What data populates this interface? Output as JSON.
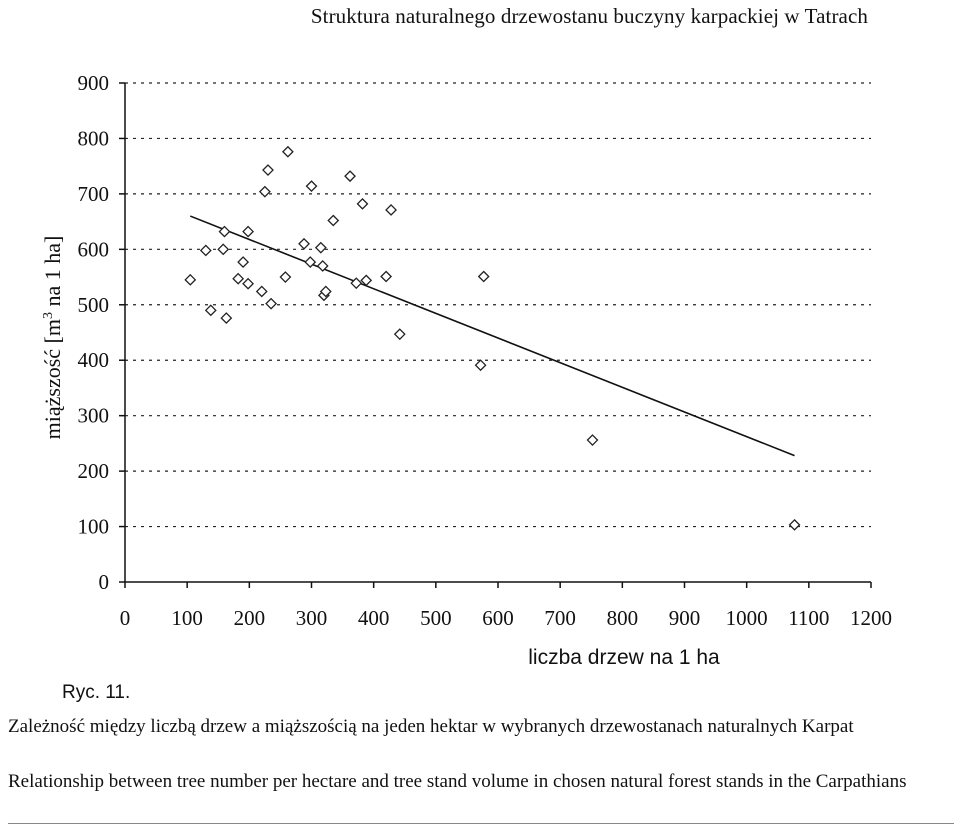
{
  "running_header": "Struktura naturalnego drzewostanu buczyny karpackiej w Tatrach",
  "figure": {
    "label": "Ryc. 11.",
    "caption_pl": "Zależność między liczbą drzew a miąższością na jeden hektar w wybranych drzewostanach naturalnych Karpat",
    "caption_en": "Relationship between tree number per hectare and tree stand volume in chosen natural forest stands in the Carpathians"
  },
  "chart_data": {
    "type": "scatter",
    "xlabel": "liczba drzew na 1 ha",
    "ylabel_prefix": "miąższość [m",
    "ylabel_sup": "3",
    "ylabel_suffix": " na 1 ha]",
    "xlim": [
      0,
      1200
    ],
    "ylim": [
      0,
      900
    ],
    "xticks": [
      0,
      100,
      200,
      300,
      400,
      500,
      600,
      700,
      800,
      900,
      1000,
      1100,
      1200
    ],
    "yticks": [
      0,
      100,
      200,
      300,
      400,
      500,
      600,
      700,
      800,
      900
    ],
    "grid": "horizontal dashed",
    "marker": "open diamond",
    "points": [
      {
        "x": 105,
        "y": 545
      },
      {
        "x": 130,
        "y": 598
      },
      {
        "x": 138,
        "y": 490
      },
      {
        "x": 158,
        "y": 600
      },
      {
        "x": 160,
        "y": 632
      },
      {
        "x": 163,
        "y": 476
      },
      {
        "x": 182,
        "y": 547
      },
      {
        "x": 190,
        "y": 577
      },
      {
        "x": 198,
        "y": 632
      },
      {
        "x": 198,
        "y": 538
      },
      {
        "x": 220,
        "y": 524
      },
      {
        "x": 225,
        "y": 704
      },
      {
        "x": 230,
        "y": 743
      },
      {
        "x": 235,
        "y": 502
      },
      {
        "x": 258,
        "y": 550
      },
      {
        "x": 262,
        "y": 776
      },
      {
        "x": 288,
        "y": 610
      },
      {
        "x": 298,
        "y": 577
      },
      {
        "x": 300,
        "y": 714
      },
      {
        "x": 315,
        "y": 603
      },
      {
        "x": 318,
        "y": 570
      },
      {
        "x": 320,
        "y": 517
      },
      {
        "x": 323,
        "y": 524
      },
      {
        "x": 335,
        "y": 652
      },
      {
        "x": 362,
        "y": 732
      },
      {
        "x": 372,
        "y": 539
      },
      {
        "x": 382,
        "y": 682
      },
      {
        "x": 388,
        "y": 544
      },
      {
        "x": 420,
        "y": 551
      },
      {
        "x": 428,
        "y": 671
      },
      {
        "x": 442,
        "y": 447
      },
      {
        "x": 572,
        "y": 391
      },
      {
        "x": 577,
        "y": 551
      },
      {
        "x": 752,
        "y": 256
      },
      {
        "x": 1077,
        "y": 103
      }
    ],
    "trendline": {
      "x": [
        105,
        1077
      ],
      "y": [
        660,
        228
      ]
    }
  }
}
